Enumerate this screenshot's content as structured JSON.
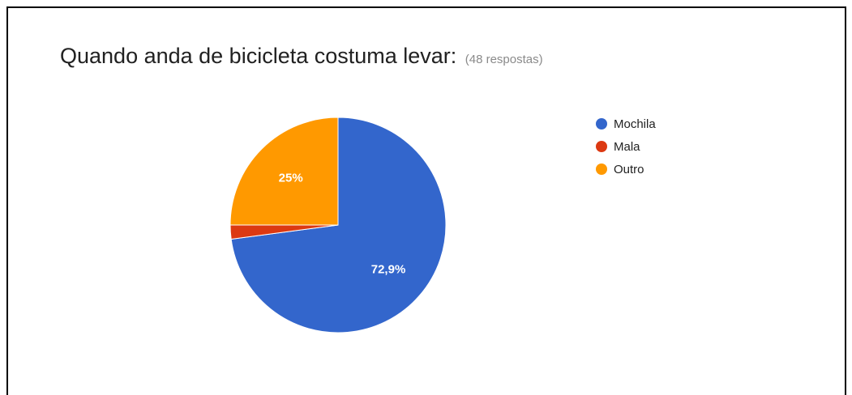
{
  "header": {
    "title": "Quando anda de bicicleta costuma levar:",
    "subtitle": "(48 respostas)"
  },
  "chart_data": {
    "type": "pie",
    "title": "Quando anda de bicicleta costuma levar:",
    "subtitle": "(48 respostas)",
    "legend_position": "right",
    "slices": [
      {
        "label": "Mochila",
        "value": 72.9,
        "display_label": "72,9%",
        "color": "#3366cc"
      },
      {
        "label": "Mala",
        "value": 2.1,
        "display_label": "",
        "color": "#dc3912"
      },
      {
        "label": "Outro",
        "value": 25,
        "display_label": "25%",
        "color": "#ff9900"
      }
    ]
  }
}
